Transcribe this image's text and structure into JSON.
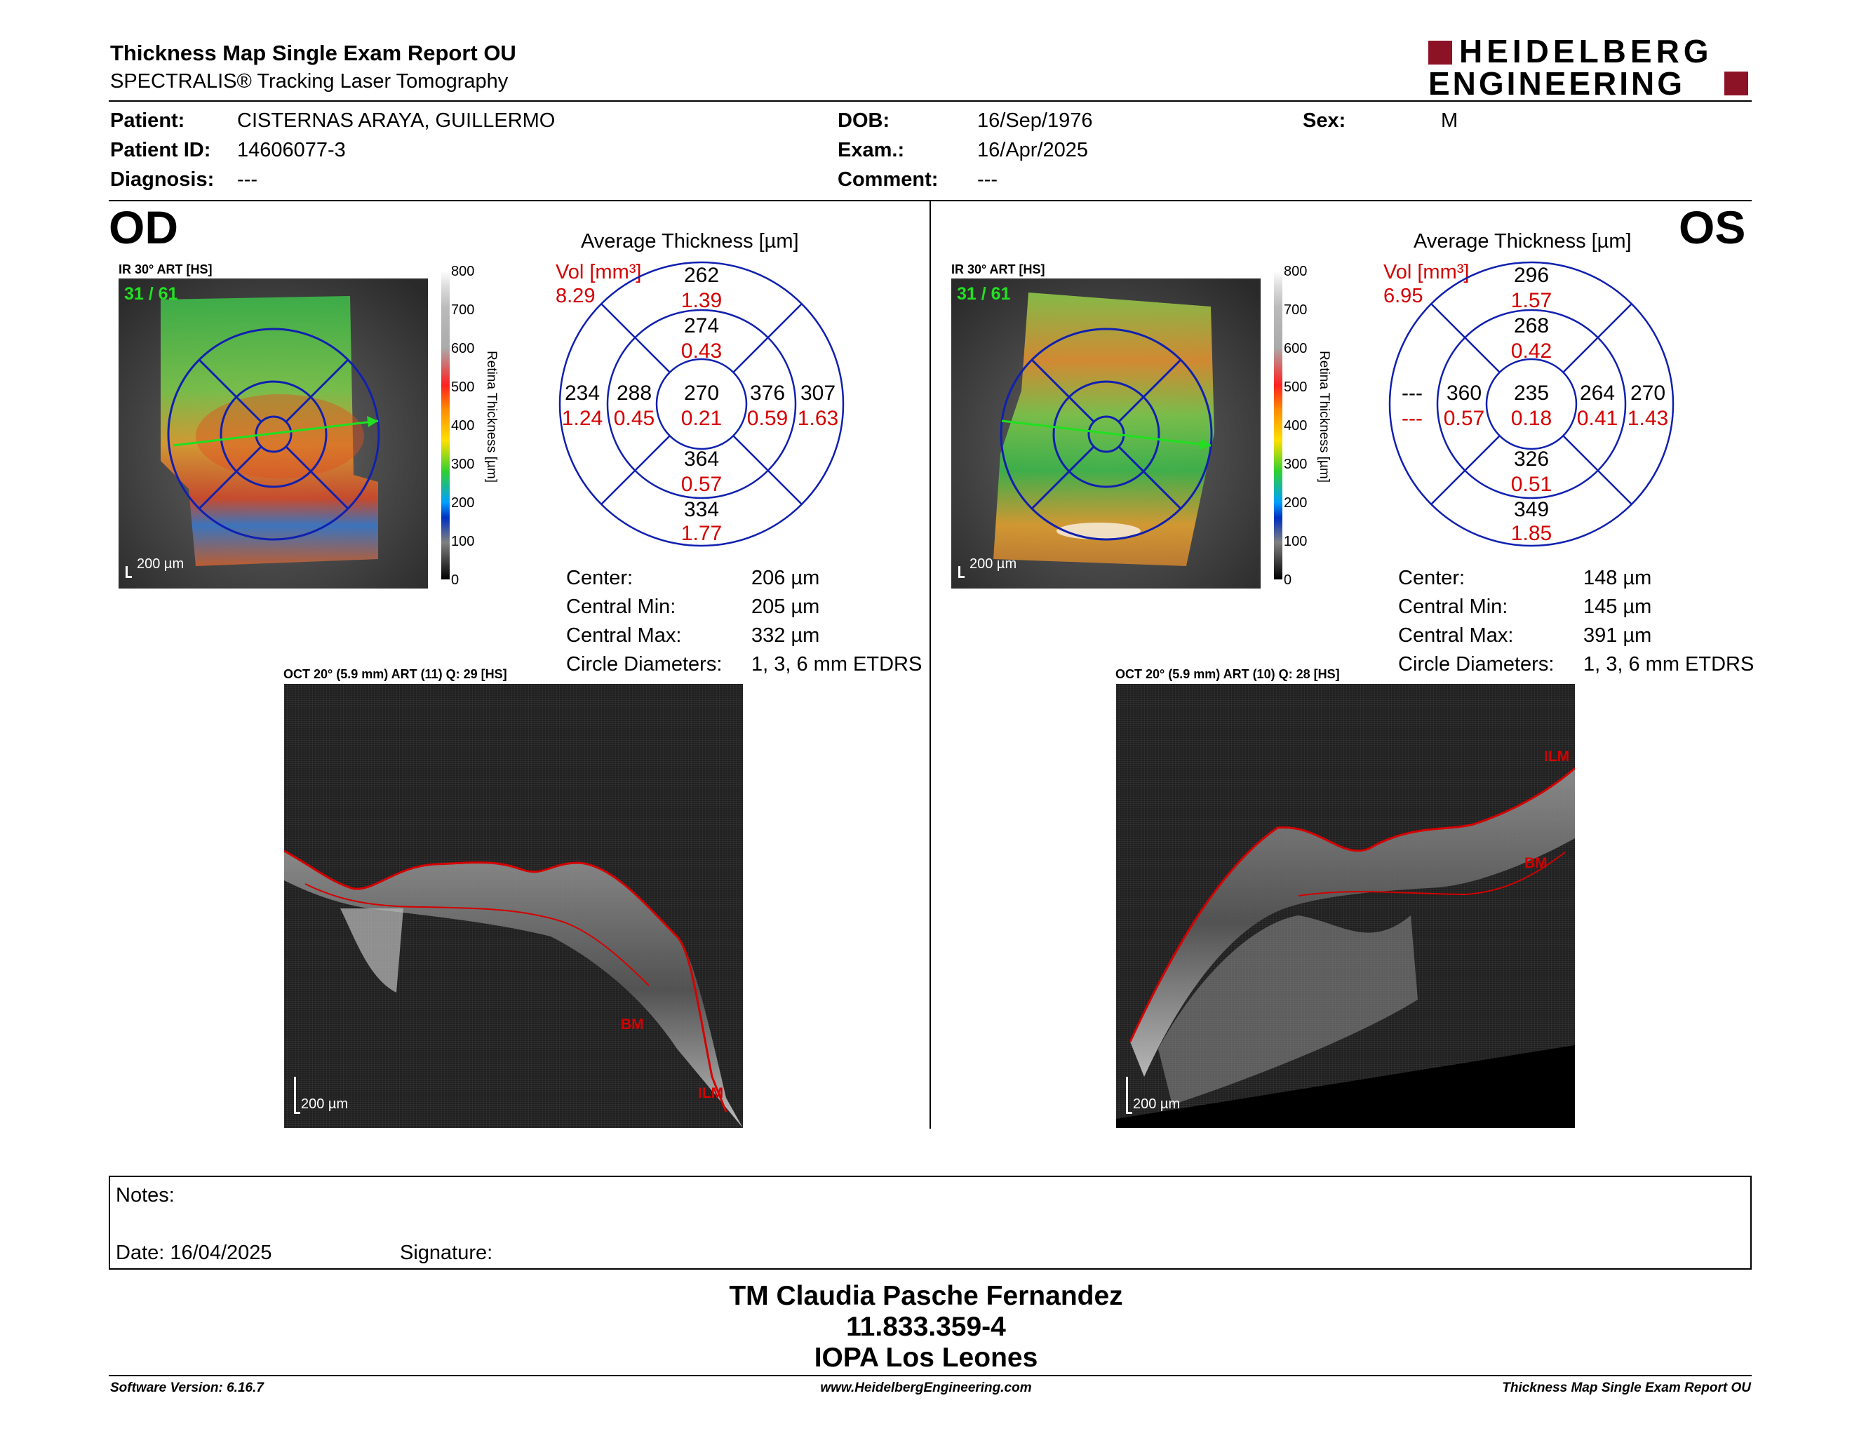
{
  "header": {
    "title": "Thickness Map Single Exam Report OU",
    "subtitle": "SPECTRALIS® Tracking Laser Tomography",
    "brand_line1": "HEIDELBERG",
    "brand_line2": "ENGINEERING"
  },
  "patient": {
    "patient_label": "Patient:",
    "patient_value": "CISTERNAS ARAYA, GUILLERMO",
    "id_label": "Patient ID:",
    "id_value": "14606077-3",
    "diagnosis_label": "Diagnosis:",
    "diagnosis_value": "---",
    "dob_label": "DOB:",
    "dob_value": "16/Sep/1976",
    "exam_label": "Exam.:",
    "exam_value": "16/Apr/2025",
    "comment_label": "Comment:",
    "comment_value": "---",
    "sex_label": "Sex:",
    "sex_value": "M"
  },
  "od": {
    "eye": "OD",
    "ir_label": "IR 30° ART [HS]",
    "frame": "31 / 61",
    "scale_label": "200 µm",
    "colorbar_ticks": [
      "800",
      "700",
      "600",
      "500",
      "400",
      "300",
      "200",
      "100",
      "0"
    ],
    "colorbar_caption": "Retina Thickness [µm]",
    "avg_title": "Average Thickness [µm]",
    "vol_label": "Vol [mm³]",
    "vol_value": "8.29",
    "etdrs": {
      "sup_outer": "262",
      "sup_outer_v": "1.39",
      "sup_inner": "274",
      "sup_inner_v": "0.43",
      "temp_outer": "234",
      "temp_outer_v": "1.24",
      "temp_inner": "288",
      "temp_inner_v": "0.45",
      "center": "270",
      "center_v": "0.21",
      "nasal_inner": "376",
      "nasal_inner_v": "0.59",
      "nasal_outer": "307",
      "nasal_outer_v": "1.63",
      "inf_inner": "364",
      "inf_inner_v": "0.57",
      "inf_outer": "334",
      "inf_outer_v": "1.77"
    },
    "stats": [
      {
        "label": "Center:",
        "value": "206 µm"
      },
      {
        "label": "Central Min:",
        "value": "205 µm"
      },
      {
        "label": "Central Max:",
        "value": "332 µm"
      },
      {
        "label": "Circle Diameters:",
        "value": "1, 3, 6 mm ETDRS"
      }
    ],
    "oct_label": "OCT 20° (5.9 mm) ART (11) Q: 29 [HS]",
    "oct_scale": "200 µm",
    "ilm": "ILM",
    "bm": "BM"
  },
  "os": {
    "eye": "OS",
    "ir_label": "IR 30° ART [HS]",
    "frame": "31 / 61",
    "scale_label": "200 µm",
    "colorbar_ticks": [
      "800",
      "700",
      "600",
      "500",
      "400",
      "300",
      "200",
      "100",
      "0"
    ],
    "colorbar_caption": "Retina Thickness [µm]",
    "avg_title": "Average Thickness [µm]",
    "vol_label": "Vol [mm³]",
    "vol_value": "6.95",
    "etdrs": {
      "sup_outer": "296",
      "sup_outer_v": "1.57",
      "sup_inner": "268",
      "sup_inner_v": "0.42",
      "temp_outer": "---",
      "temp_outer_v": "---",
      "temp_inner": "360",
      "temp_inner_v": "0.57",
      "center": "235",
      "center_v": "0.18",
      "nasal_inner": "264",
      "nasal_inner_v": "0.41",
      "nasal_outer": "270",
      "nasal_outer_v": "1.43",
      "inf_inner": "326",
      "inf_inner_v": "0.51",
      "inf_outer": "349",
      "inf_outer_v": "1.85"
    },
    "stats": [
      {
        "label": "Center:",
        "value": "148 µm"
      },
      {
        "label": "Central Min:",
        "value": "145 µm"
      },
      {
        "label": "Central Max:",
        "value": "391 µm"
      },
      {
        "label": "Circle Diameters:",
        "value": "1, 3, 6 mm ETDRS"
      }
    ],
    "oct_label": "OCT 20° (5.9 mm) ART (10) Q: 28 [HS]",
    "oct_scale": "200 µm",
    "ilm": "ILM",
    "bm": "BM"
  },
  "notes": {
    "notes_label": "Notes:",
    "date_label": "Date: 16/04/2025",
    "signature_label": "Signature:"
  },
  "signer": {
    "name": "TM Claudia Pasche Fernandez",
    "id": "11.833.359-4",
    "org": "IOPA Los Leones"
  },
  "footer": {
    "software": "Software Version: 6.16.7",
    "url": "www.HeidelbergEngineering.com",
    "report": "Thickness Map Single Exam Report OU"
  }
}
